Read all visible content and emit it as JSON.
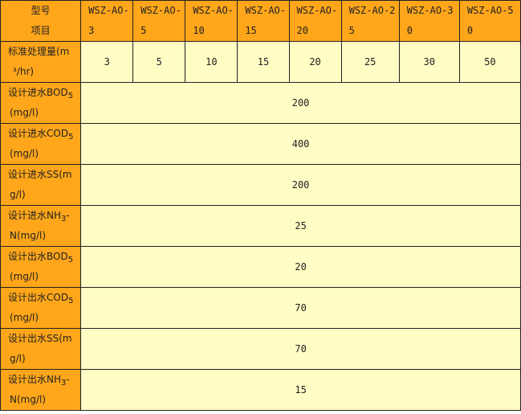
{
  "header": {
    "corner_line1": "型号",
    "corner_line2": "项目",
    "models": [
      [
        "WSZ-AO-",
        "3"
      ],
      [
        "WSZ-AO-",
        "5"
      ],
      [
        "WSZ-AO-",
        "10"
      ],
      [
        "WSZ-AO-",
        "15"
      ],
      [
        "WSZ-AO-",
        "20"
      ],
      [
        "WSZ-AO-2",
        "5"
      ],
      [
        "WSZ-AO-3",
        "0"
      ],
      [
        "WSZ-AO-5",
        "0"
      ]
    ]
  },
  "capacity": {
    "line1": "标准处理量(m",
    "line2": "³/hr)",
    "values": [
      "3",
      "5",
      "10",
      "15",
      "20",
      "25",
      "30",
      "50"
    ]
  },
  "rows": [
    {
      "pre": "设计进水BOD",
      "sub": "5",
      "post": "",
      "line2": "(mg/l)",
      "value": "200"
    },
    {
      "pre": "设计进水COD",
      "sub": "5",
      "post": "",
      "line2": "(mg/l)",
      "value": "400"
    },
    {
      "pre": "设计进水SS(m",
      "sub": "",
      "post": "",
      "line2": "g/l)",
      "value": "200"
    },
    {
      "pre": "设计进水NH",
      "sub": "3",
      "post": "-",
      "line2": "N(mg/l)",
      "value": "25"
    },
    {
      "pre": "设计出水BOD",
      "sub": "5",
      "post": "",
      "line2": "(mg/l)",
      "value": "20"
    },
    {
      "pre": "设计出水COD",
      "sub": "5",
      "post": "",
      "line2": "(mg/l)",
      "value": "70"
    },
    {
      "pre": "设计出水SS(m",
      "sub": "",
      "post": "",
      "line2": "g/l)",
      "value": "70"
    },
    {
      "pre": "设计出水NH",
      "sub": "3",
      "post": "-",
      "line2": "N(mg/l)",
      "value": "15"
    }
  ]
}
